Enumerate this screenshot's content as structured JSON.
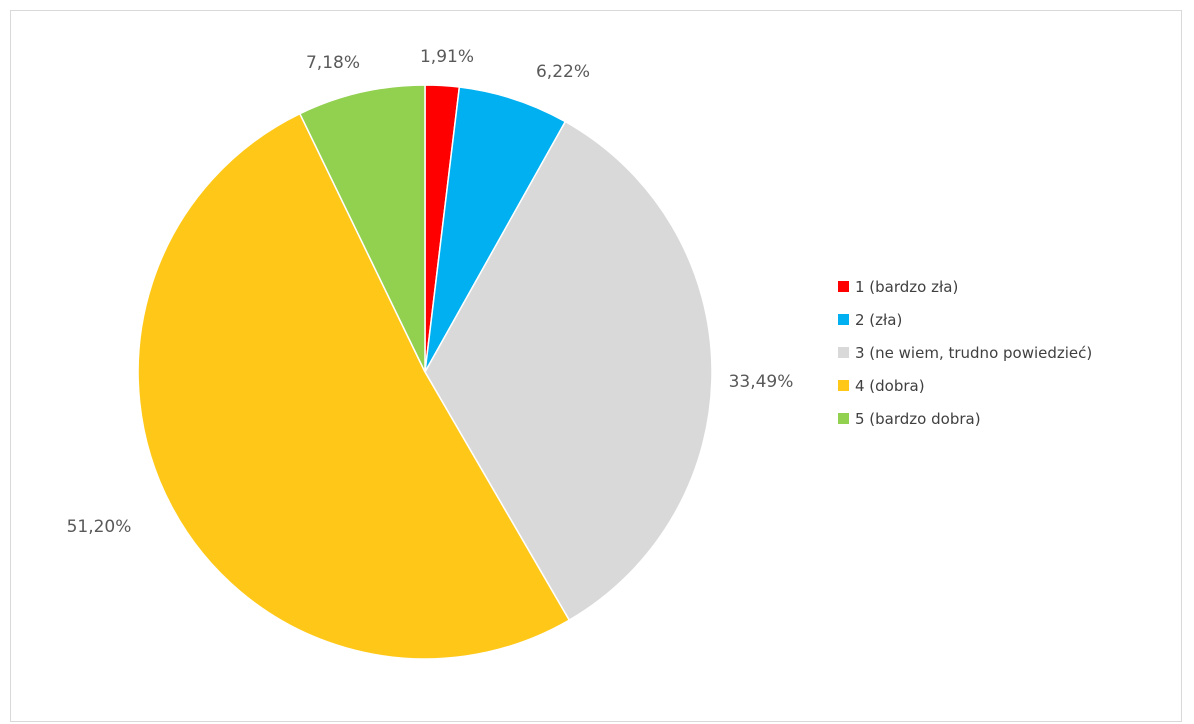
{
  "chart_data": {
    "type": "pie",
    "title": "",
    "legend_position": "right",
    "slices": [
      {
        "label": "1 (bardzo zła)",
        "value": 1.91,
        "value_label": "1,91%",
        "color": "#ff0000"
      },
      {
        "label": "2 (zła)",
        "value": 6.22,
        "value_label": "6,22%",
        "color": "#00b0f0"
      },
      {
        "label": "3 (ne wiem, trudno powiedzieć)",
        "value": 33.49,
        "value_label": "33,49%",
        "color": "#d9d9d9"
      },
      {
        "label": "4 (dobra)",
        "value": 51.2,
        "value_label": "51,20%",
        "color": "#ffc819"
      },
      {
        "label": "5 (bardzo dobra)",
        "value": 7.18,
        "value_label": "7,18%",
        "color": "#92d050"
      }
    ]
  }
}
